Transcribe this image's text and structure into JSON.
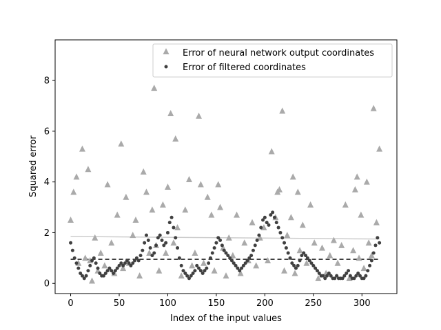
{
  "chart_data": {
    "type": "scatter",
    "xlabel": "Index of the input values",
    "ylabel": "Squared error",
    "xlim": [
      -16,
      336
    ],
    "ylim": [
      -0.4,
      9.6
    ],
    "x_ticks": [
      0,
      50,
      100,
      150,
      200,
      250,
      300
    ],
    "y_ticks": [
      0,
      2,
      4,
      6,
      8
    ],
    "grid": false,
    "legend_position": "top-right",
    "series": [
      {
        "name": "Error of neural network output coordinates",
        "marker": "triangle",
        "color": "#aaaaaa",
        "x": [
          0,
          3,
          6,
          8,
          12,
          15,
          18,
          20,
          22,
          25,
          28,
          31,
          35,
          38,
          42,
          45,
          48,
          52,
          54,
          57,
          60,
          64,
          67,
          71,
          75,
          78,
          81,
          84,
          86,
          88,
          91,
          95,
          98,
          100,
          103,
          106,
          108,
          110,
          114,
          118,
          122,
          125,
          128,
          132,
          134,
          137,
          141,
          145,
          148,
          152,
          154,
          157,
          160,
          163,
          167,
          171,
          175,
          179,
          183,
          187,
          191,
          195,
          199,
          203,
          207,
          211,
          213,
          215,
          218,
          220,
          223,
          227,
          229,
          231,
          234,
          236,
          239,
          243,
          247,
          251,
          255,
          259,
          263,
          267,
          271,
          275,
          279,
          283,
          287,
          291,
          293,
          295,
          297,
          299,
          302,
          305,
          307,
          310,
          312,
          315,
          318
        ],
        "y": [
          2.5,
          3.6,
          4.2,
          0.8,
          5.3,
          1.0,
          4.5,
          0.9,
          0.1,
          1.8,
          0.5,
          1.2,
          0.7,
          3.9,
          1.6,
          0.4,
          2.7,
          5.5,
          0.6,
          3.4,
          0.8,
          1.9,
          2.5,
          0.3,
          4.4,
          3.6,
          1.2,
          2.9,
          7.7,
          1.5,
          0.5,
          3.1,
          1.2,
          3.8,
          6.7,
          1.6,
          5.7,
          2.2,
          0.3,
          2.9,
          4.1,
          0.7,
          1.2,
          6.6,
          3.9,
          0.8,
          3.4,
          2.7,
          0.5,
          3.9,
          3.0,
          1.4,
          0.3,
          1.8,
          1.1,
          2.7,
          0.4,
          1.6,
          0.9,
          2.4,
          0.7,
          1.8,
          2.2,
          0.9,
          5.2,
          2.6,
          3.6,
          3.7,
          6.8,
          0.5,
          1.9,
          2.6,
          4.2,
          0.4,
          3.6,
          1.3,
          2.3,
          0.8,
          3.1,
          1.6,
          0.2,
          1.4,
          0.4,
          1.1,
          1.7,
          0.8,
          1.5,
          3.1,
          0.2,
          1.3,
          3.7,
          4.2,
          1.0,
          2.7,
          0.6,
          4.0,
          1.6,
          1.1,
          6.9,
          2.4,
          5.3
        ]
      },
      {
        "name": "Error of filtered coordinates",
        "marker": "circle",
        "color": "#404040",
        "x": [
          0,
          2,
          4,
          6,
          8,
          10,
          12,
          14,
          16,
          18,
          20,
          22,
          24,
          26,
          28,
          30,
          32,
          34,
          36,
          38,
          40,
          42,
          44,
          46,
          48,
          50,
          52,
          54,
          56,
          58,
          60,
          62,
          64,
          66,
          68,
          70,
          72,
          74,
          76,
          78,
          80,
          82,
          84,
          86,
          88,
          90,
          92,
          94,
          96,
          98,
          100,
          102,
          104,
          106,
          108,
          110,
          112,
          114,
          116,
          118,
          120,
          122,
          124,
          126,
          128,
          130,
          132,
          134,
          136,
          138,
          140,
          142,
          144,
          146,
          148,
          150,
          152,
          154,
          156,
          158,
          160,
          162,
          164,
          166,
          168,
          170,
          172,
          174,
          176,
          178,
          180,
          182,
          184,
          186,
          188,
          190,
          192,
          194,
          196,
          198,
          200,
          202,
          204,
          206,
          208,
          210,
          212,
          214,
          216,
          218,
          220,
          222,
          224,
          226,
          228,
          230,
          232,
          234,
          236,
          238,
          240,
          242,
          244,
          246,
          248,
          250,
          252,
          254,
          256,
          258,
          260,
          262,
          264,
          266,
          268,
          270,
          272,
          274,
          276,
          278,
          280,
          282,
          284,
          286,
          288,
          290,
          292,
          294,
          296,
          298,
          300,
          302,
          304,
          306,
          308,
          310,
          312,
          314,
          316,
          318
        ],
        "y": [
          1.6,
          1.3,
          1.0,
          0.8,
          0.6,
          0.4,
          0.3,
          0.2,
          0.3,
          0.5,
          0.7,
          0.9,
          1.0,
          0.8,
          0.6,
          0.4,
          0.3,
          0.3,
          0.4,
          0.5,
          0.6,
          0.5,
          0.4,
          0.5,
          0.6,
          0.7,
          0.8,
          0.7,
          0.8,
          0.9,
          0.8,
          0.7,
          0.8,
          0.9,
          1.0,
          0.9,
          1.1,
          1.3,
          1.6,
          1.9,
          1.7,
          1.4,
          1.1,
          1.2,
          1.5,
          1.8,
          1.9,
          1.7,
          1.5,
          1.6,
          2.0,
          2.4,
          2.6,
          2.2,
          1.8,
          1.4,
          1.0,
          0.7,
          0.5,
          0.4,
          0.3,
          0.2,
          0.3,
          0.4,
          0.5,
          0.7,
          0.6,
          0.5,
          0.4,
          0.5,
          0.6,
          0.8,
          1.0,
          1.2,
          1.4,
          1.6,
          1.8,
          1.7,
          1.5,
          1.3,
          1.2,
          1.1,
          1.0,
          0.9,
          0.8,
          0.7,
          0.6,
          0.5,
          0.6,
          0.7,
          0.8,
          0.9,
          1.0,
          1.1,
          1.3,
          1.5,
          1.7,
          1.9,
          2.2,
          2.5,
          2.6,
          2.4,
          2.3,
          2.7,
          2.8,
          2.6,
          2.4,
          2.2,
          2.0,
          1.8,
          1.6,
          1.4,
          1.2,
          1.0,
          0.8,
          0.7,
          0.6,
          0.7,
          0.9,
          1.1,
          1.2,
          1.1,
          1.0,
          0.9,
          0.8,
          0.7,
          0.6,
          0.5,
          0.4,
          0.3,
          0.3,
          0.2,
          0.3,
          0.4,
          0.3,
          0.2,
          0.2,
          0.3,
          0.2,
          0.2,
          0.2,
          0.3,
          0.4,
          0.5,
          0.3,
          0.2,
          0.2,
          0.3,
          0.4,
          0.3,
          0.2,
          0.2,
          0.3,
          0.5,
          0.7,
          0.9,
          1.2,
          1.5,
          1.8,
          1.6
        ]
      }
    ],
    "trendlines": [
      {
        "series": "Error of neural network output coordinates",
        "style": "solid",
        "color": "#cccccc",
        "x": [
          0,
          318
        ],
        "y": [
          1.85,
          1.75
        ]
      },
      {
        "series": "Error of filtered coordinates",
        "style": "dashed",
        "color": "#222222",
        "x": [
          0,
          318
        ],
        "y": [
          0.95,
          0.95
        ]
      }
    ]
  }
}
